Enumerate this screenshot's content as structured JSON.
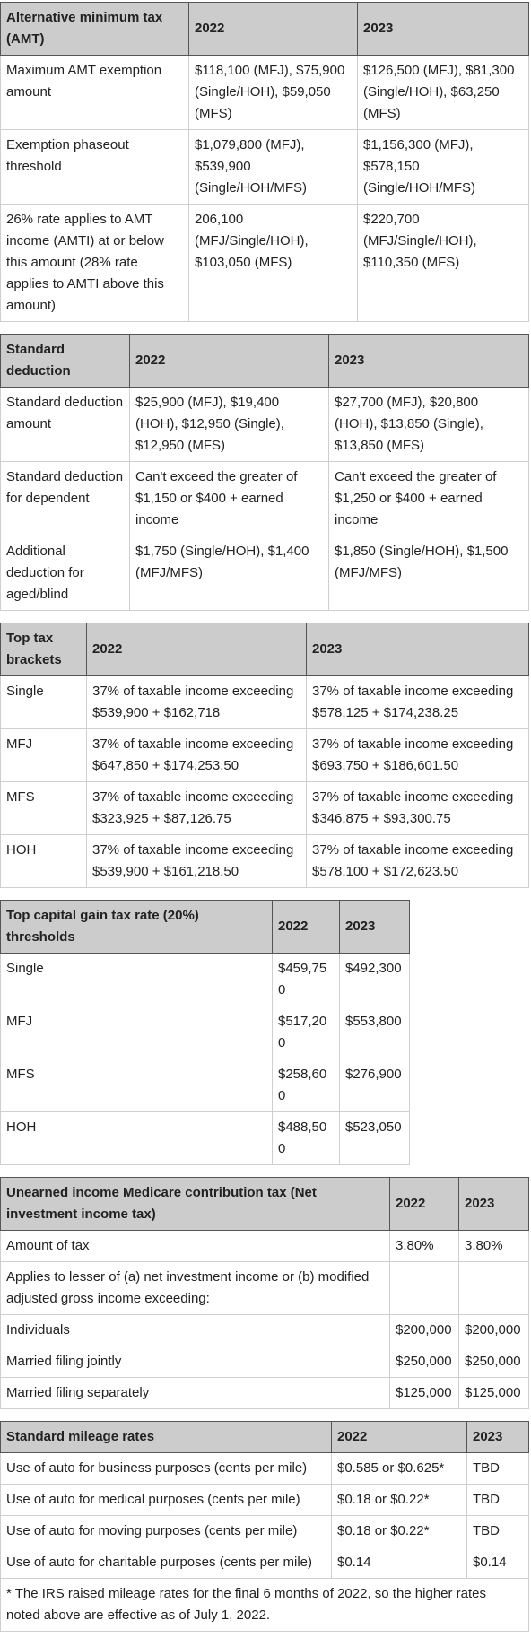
{
  "tables": [
    {
      "header": [
        "Alternative minimum tax (AMT)",
        "2022",
        "2023"
      ],
      "rows": [
        [
          "Maximum AMT exemption amount",
          "$118,100 (MFJ), $75,900 (Single/HOH), $59,050 (MFS)",
          "$126,500 (MFJ), $81,300 (Single/HOH), $63,250 (MFS)"
        ],
        [
          "Exemption phaseout threshold",
          "$1,079,800 (MFJ), $539,900 (Single/HOH/MFS)",
          "$1,156,300 (MFJ), $578,150 (Single/HOH/MFS)"
        ],
        [
          "26% rate applies to AMT income (AMTI) at or below this amount (28% rate applies to AMTI above this amount)",
          "206,100 (MFJ/Single/HOH), $103,050 (MFS)",
          "$220,700 (MFJ/Single/HOH), $110,350 (MFS)"
        ]
      ]
    },
    {
      "header": [
        "Standard deduction",
        "2022",
        "2023"
      ],
      "rows": [
        [
          "Standard deduction amount",
          "$25,900 (MFJ), $19,400 (HOH), $12,950 (Single), $12,950 (MFS)",
          "$27,700 (MFJ), $20,800 (HOH), $13,850 (Single), $13,850 (MFS)"
        ],
        [
          "Standard deduction for dependent",
          "Can't exceed the greater of $1,150 or $400 + earned income",
          "Can't exceed the greater of $1,250 or $400 + earned income"
        ],
        [
          "Additional deduction for aged/blind",
          "$1,750 (Single/HOH), $1,400 (MFJ/MFS)",
          "$1,850 (Single/HOH), $1,500 (MFJ/MFS)"
        ]
      ]
    },
    {
      "header": [
        "Top tax brackets",
        "2022",
        "2023"
      ],
      "rows": [
        [
          "Single",
          "37% of taxable income exceeding $539,900 + $162,718",
          "37% of taxable income exceeding $578,125 + $174,238.25"
        ],
        [
          "MFJ",
          "37% of taxable income exceeding $647,850 + $174,253.50",
          "37% of taxable income exceeding $693,750 + $186,601.50"
        ],
        [
          "MFS",
          "37% of taxable income exceeding $323,925 + $87,126.75",
          "37% of taxable income exceeding $346,875 + $93,300.75"
        ],
        [
          "HOH",
          "37% of taxable income exceeding $539,900 + $161,218.50",
          "37% of taxable income exceeding $578,100 + $172,623.50"
        ]
      ]
    },
    {
      "header": [
        "Top capital gain tax rate (20%) thresholds",
        "2022",
        "2023"
      ],
      "rows": [
        [
          "Single",
          "$459,750",
          "$492,300"
        ],
        [
          "MFJ",
          "$517,200",
          "$553,800"
        ],
        [
          "MFS",
          "$258,600",
          "$276,900"
        ],
        [
          "HOH",
          "$488,500",
          "$523,050"
        ]
      ]
    },
    {
      "header": [
        "Unearned income Medicare contribution tax (Net investment income tax)",
        "2022",
        "2023"
      ],
      "rows": [
        [
          "Amount of tax",
          "3.80%",
          "3.80%"
        ],
        [
          "Applies to lesser of (a) net investment income or (b) modified adjusted gross income exceeding:"
        ],
        [
          "Individuals",
          "$200,000",
          "$200,000"
        ],
        [
          "Married filing jointly",
          "$250,000",
          "$250,000"
        ],
        [
          "Married filing separately",
          "$125,000",
          "$125,000"
        ]
      ]
    },
    {
      "header": [
        "Standard mileage rates",
        "2022",
        "2023"
      ],
      "rows": [
        [
          "Use of auto for business purposes (cents per mile)",
          "$0.585 or $0.625*",
          "TBD"
        ],
        [
          "Use of auto for medical purposes (cents per mile)",
          "$0.18 or $0.22*",
          "TBD"
        ],
        [
          "Use of auto for moving purposes (cents per mile)",
          "$0.18 or $0.22*",
          "TBD"
        ],
        [
          "Use of auto for charitable purposes (cents per mile)",
          "$0.14",
          "$0.14"
        ]
      ],
      "footnote": "* The IRS raised mileage rates for the final 6 months of 2022, so the higher rates noted above are effective as of July 1, 2022."
    }
  ]
}
